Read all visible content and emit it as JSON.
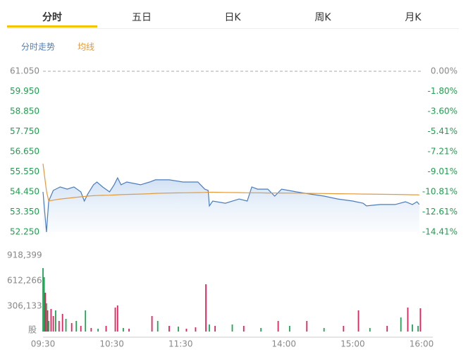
{
  "tabs": [
    "分时",
    "五日",
    "日K",
    "周K",
    "月K"
  ],
  "active_tab": 0,
  "chart_data": [
    {
      "type": "line",
      "x": [
        0,
        3,
        5,
        9,
        15,
        21,
        27,
        33,
        36,
        39,
        44,
        47,
        52,
        58,
        62,
        65,
        68,
        73,
        85,
        93,
        98,
        110,
        122,
        135,
        141,
        144,
        145,
        148,
        159,
        171,
        178,
        182,
        187,
        196,
        202,
        208,
        221,
        233,
        245,
        257,
        270,
        279,
        282,
        294,
        307,
        316,
        322,
        326,
        328
      ],
      "series": [
        {
          "name": "分时走势",
          "color": "#4a7dbf",
          "values": [
            54.45,
            52.25,
            53.95,
            54.53,
            54.72,
            54.6,
            54.72,
            54.45,
            53.95,
            54.33,
            54.84,
            54.99,
            54.72,
            54.45,
            54.84,
            55.22,
            54.84,
            54.99,
            54.84,
            54.99,
            55.11,
            55.11,
            54.99,
            54.99,
            54.6,
            54.53,
            53.68,
            53.95,
            53.83,
            54.06,
            53.95,
            54.72,
            54.6,
            54.6,
            54.22,
            54.6,
            54.45,
            54.33,
            54.22,
            54.06,
            53.95,
            53.83,
            53.68,
            53.76,
            53.76,
            53.91,
            53.76,
            53.91,
            53.76
          ]
        },
        {
          "name": "均线",
          "color": "#e39a3b",
          "values": [
            55.99,
            54.5,
            53.95,
            54.0,
            54.06,
            54.1,
            54.14,
            54.18,
            54.2,
            54.22,
            54.24,
            54.25,
            54.26,
            54.27,
            54.28,
            54.29,
            54.3,
            54.31,
            54.33,
            54.35,
            54.37,
            54.39,
            54.4,
            54.41,
            54.42,
            54.43,
            54.43,
            54.43,
            54.42,
            54.41,
            54.4,
            54.4,
            54.4,
            54.39,
            54.39,
            54.39,
            54.38,
            54.37,
            54.36,
            54.35,
            54.34,
            54.33,
            54.33,
            54.32,
            54.31,
            54.3,
            54.29,
            54.29,
            54.28
          ]
        }
      ],
      "xlim": [
        0,
        330
      ],
      "ylim": [
        52.25,
        61.05
      ],
      "yticks": [
        {
          "value": 61.05,
          "label": "61.050"
        },
        {
          "value": 59.95,
          "label": "59.950"
        },
        {
          "value": 58.85,
          "label": "58.850"
        },
        {
          "value": 57.75,
          "label": "57.750"
        },
        {
          "value": 56.65,
          "label": "56.650"
        },
        {
          "value": 55.55,
          "label": "55.550"
        },
        {
          "value": 54.45,
          "label": "54.450"
        },
        {
          "value": 53.35,
          "label": "53.350"
        },
        {
          "value": 52.25,
          "label": "52.250"
        }
      ],
      "y2lim": [
        -14.41,
        0
      ],
      "y2ticks": [
        {
          "value": 0,
          "label": "0.00%"
        },
        {
          "value": -1.8,
          "label": "-1.80%"
        },
        {
          "value": -3.6,
          "label": "-3.60%"
        },
        {
          "value": -5.41,
          "label": "-5.41%"
        },
        {
          "value": -7.21,
          "label": "-7.21%"
        },
        {
          "value": -9.01,
          "label": "-9.01%"
        },
        {
          "value": -10.81,
          "label": "-10.81%"
        },
        {
          "value": -12.61,
          "label": "-12.61%"
        },
        {
          "value": -14.41,
          "label": "-14.41%"
        }
      ]
    },
    {
      "type": "bar",
      "x": [
        0,
        1,
        2,
        3,
        4,
        5,
        7,
        9,
        11,
        14,
        17,
        20,
        25,
        29,
        33,
        37,
        42,
        48,
        55,
        63,
        65,
        70,
        75,
        95,
        100,
        110,
        118,
        125,
        133,
        142,
        145,
        150,
        165,
        175,
        190,
        205,
        215,
        230,
        245,
        262,
        275,
        285,
        300,
        312,
        318,
        322,
        327,
        329
      ],
      "values": [
        765000,
        655000,
        468000,
        340000,
        255000,
        128000,
        272000,
        187000,
        255000,
        128000,
        213000,
        153000,
        102000,
        128000,
        68000,
        255000,
        43000,
        34000,
        68000,
        289000,
        315000,
        43000,
        34000,
        187000,
        128000,
        68000,
        60000,
        34000,
        51000,
        570000,
        85000,
        68000,
        85000,
        68000,
        43000,
        128000,
        68000,
        128000,
        43000,
        68000,
        255000,
        43000,
        68000,
        170000,
        289000,
        85000,
        68000,
        281000
      ],
      "colors": [
        "#22a356",
        "#22a356",
        "#e0245e",
        "#22a356",
        "#e0245e",
        "#22a356",
        "#e0245e",
        "#e0245e",
        "#22a356",
        "#e0245e",
        "#e0245e",
        "#22a356",
        "#e0245e",
        "#22a356",
        "#e0245e",
        "#22a356",
        "#e0245e",
        "#22a356",
        "#e0245e",
        "#e0245e",
        "#e0245e",
        "#22a356",
        "#e0245e",
        "#e0245e",
        "#22a356",
        "#e0245e",
        "#22a356",
        "#e0245e",
        "#e0245e",
        "#e0245e",
        "#22a356",
        "#e0245e",
        "#22a356",
        "#e0245e",
        "#22a356",
        "#e0245e",
        "#22a356",
        "#e0245e",
        "#22a356",
        "#e0245e",
        "#e0245e",
        "#22a356",
        "#e0245e",
        "#22a356",
        "#e0245e",
        "#22a356",
        "#22a356",
        "#e0245e"
      ],
      "xlim": [
        0,
        330
      ],
      "xticks": [
        {
          "value": 0,
          "label": "09:30"
        },
        {
          "value": 60,
          "label": "10:30"
        },
        {
          "value": 120,
          "label": "11:30"
        },
        {
          "value": 210,
          "label": "14:00"
        },
        {
          "value": 270,
          "label": "15:00"
        },
        {
          "value": 330,
          "label": "16:00"
        }
      ],
      "ylim": [
        0,
        918399
      ],
      "yticks": [
        {
          "value": 918399,
          "label": "918,399"
        },
        {
          "value": 612266,
          "label": "612,266"
        },
        {
          "value": 306133,
          "label": "306,133"
        },
        {
          "value": 0,
          "label": "股"
        }
      ]
    }
  ]
}
